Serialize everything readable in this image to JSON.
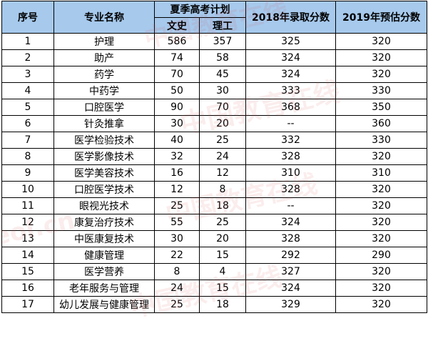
{
  "watermark": {
    "text_cn": "中国教育在线",
    "text_en": "eol.cn"
  },
  "table": {
    "headers": {
      "index": "序号",
      "major": "专业名称",
      "plan": "夏季高考计划",
      "plan_wen": "文史",
      "plan_li": "理工",
      "score_2018": "2018年录取分数",
      "score_2019": "2019年预估分数"
    },
    "rows": [
      {
        "idx": "1",
        "major": "护理",
        "wen": "586",
        "li": "357",
        "s2018": "325",
        "s2019": "320"
      },
      {
        "idx": "2",
        "major": "助产",
        "wen": "74",
        "li": "58",
        "s2018": "324",
        "s2019": "320"
      },
      {
        "idx": "3",
        "major": "药学",
        "wen": "70",
        "li": "45",
        "s2018": "324",
        "s2019": "320"
      },
      {
        "idx": "4",
        "major": "中药学",
        "wen": "50",
        "li": "30",
        "s2018": "333",
        "s2019": "330"
      },
      {
        "idx": "5",
        "major": "口腔医学",
        "wen": "90",
        "li": "70",
        "s2018": "368",
        "s2019": "350"
      },
      {
        "idx": "6",
        "major": "针灸推拿",
        "wen": "30",
        "li": "20",
        "s2018": "--",
        "s2019": "360"
      },
      {
        "idx": "7",
        "major": "医学检验技术",
        "wen": "40",
        "li": "25",
        "s2018": "332",
        "s2019": "330"
      },
      {
        "idx": "8",
        "major": "医学影像技术",
        "wen": "32",
        "li": "24",
        "s2018": "328",
        "s2019": "320"
      },
      {
        "idx": "9",
        "major": "医学美容技术",
        "wen": "16",
        "li": "12",
        "s2018": "310",
        "s2019": "310"
      },
      {
        "idx": "10",
        "major": "口腔医学技术",
        "wen": "12",
        "li": "8",
        "s2018": "328",
        "s2019": "320"
      },
      {
        "idx": "11",
        "major": "眼视光技术",
        "wen": "25",
        "li": "18",
        "s2018": "--",
        "s2019": "320"
      },
      {
        "idx": "12",
        "major": "康复治疗技术",
        "wen": "55",
        "li": "25",
        "s2018": "324",
        "s2019": "320"
      },
      {
        "idx": "13",
        "major": "中医康复技术",
        "wen": "30",
        "li": "20",
        "s2018": "328",
        "s2019": "320"
      },
      {
        "idx": "14",
        "major": "健康管理",
        "wen": "22",
        "li": "15",
        "s2018": "292",
        "s2019": "290"
      },
      {
        "idx": "15",
        "major": "医学营养",
        "wen": "8",
        "li": "4",
        "s2018": "327",
        "s2019": "320"
      },
      {
        "idx": "16",
        "major": "老年服务与管理",
        "wen": "24",
        "li": "15",
        "s2018": "324",
        "s2019": "320"
      },
      {
        "idx": "17",
        "major": "幼儿发展与健康管理",
        "wen": "25",
        "li": "18",
        "s2018": "329",
        "s2019": "320"
      }
    ]
  },
  "colors": {
    "header_bg": "#a6c9ec",
    "border": "#000000",
    "watermark": "#dc5050"
  }
}
